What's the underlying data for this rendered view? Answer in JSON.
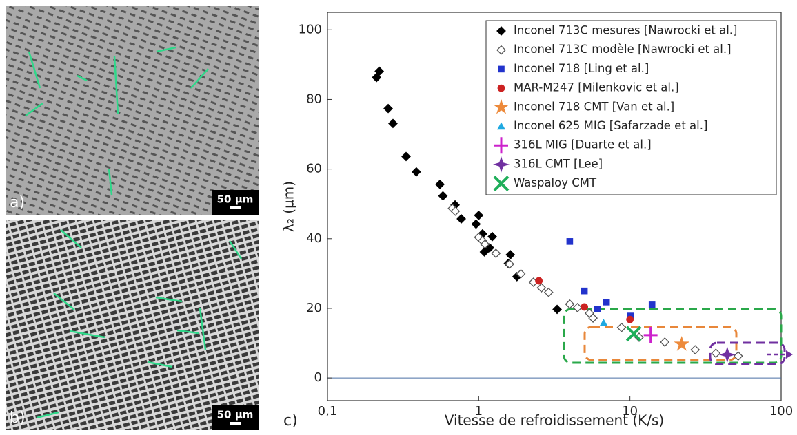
{
  "panels": [
    {
      "label": "a)",
      "scale": "50 µm"
    },
    {
      "label": "b)",
      "scale": "50 µm"
    }
  ],
  "chart_data": {
    "type": "scatter",
    "panel_label": "c)",
    "x_label": "Vitesse de refroidissement (K/s)",
    "y_label": "λ₂ (µm)",
    "x_log": true,
    "xlim": [
      0.1,
      100
    ],
    "xticks": [
      {
        "value": 0.1,
        "label": "0,1"
      },
      1,
      10,
      100
    ],
    "ylim": [
      -6.5,
      105
    ],
    "yticks": [
      0,
      20,
      40,
      60,
      80,
      100
    ],
    "series": [
      {
        "name": "Inconel 713C mesures [Nawrocki et al.]",
        "color": "#000000",
        "marker": "diamond",
        "filled": true,
        "x": [
          0.211,
          0.22,
          0.252,
          0.271,
          0.331,
          0.387,
          0.554,
          0.58,
          0.698,
          0.767,
          0.96,
          1.0,
          1.06,
          1.09,
          1.18,
          1.23,
          1.57,
          1.62,
          1.79,
          3.3
        ],
        "y": [
          86.3,
          88.1,
          77.4,
          73.1,
          63.6,
          59.2,
          55.6,
          52.3,
          49.7,
          45.7,
          44.2,
          46.7,
          41.4,
          36.2,
          37.4,
          40.6,
          32.9,
          35.4,
          29.1,
          19.7
        ]
      },
      {
        "name": "Inconel 713C modèle [Nawrocki et al.]",
        "color": "#555555",
        "marker": "diamond",
        "filled": false,
        "x": [
          0.67,
          0.7,
          1.0,
          1.06,
          1.1,
          1.3,
          1.6,
          1.9,
          2.3,
          2.6,
          2.9,
          4.0,
          4.5,
          5.4,
          5.7,
          8.8,
          11.5,
          17,
          27,
          37,
          52
        ],
        "y": [
          48.7,
          47.9,
          40.4,
          39.4,
          38.4,
          35.8,
          32.7,
          29.9,
          27.5,
          25.9,
          24.6,
          21.2,
          20.2,
          18.6,
          17.2,
          14.5,
          11.7,
          10.3,
          8.1,
          7.1,
          6.3
        ]
      },
      {
        "name": "Inconel 718 [Ling et al.]",
        "color": "#2233cc",
        "marker": "square",
        "filled": true,
        "x": [
          4.0,
          5.0,
          6.1,
          7.0,
          10.1,
          14
        ],
        "y": [
          39.2,
          25,
          19.8,
          21.8,
          17.8,
          21
        ]
      },
      {
        "name": "MAR-M247 [Milenkovic et al.]",
        "color": "#cc2222",
        "marker": "circle",
        "filled": true,
        "x": [
          2.5,
          5.0,
          10
        ],
        "y": [
          27.9,
          20.4,
          16.8
        ]
      },
      {
        "name": "Inconel 718 CMT [Van et al.]",
        "color": "#ed8a3b",
        "marker": "star",
        "filled": true,
        "x": [
          22
        ],
        "y": [
          9.7
        ]
      },
      {
        "name": "Inconel 625 MIG [Safarzade et al.]",
        "color": "#1fa9e1",
        "marker": "triangle",
        "filled": true,
        "x": [
          6.7
        ],
        "y": [
          15.8
        ]
      },
      {
        "name": "316L MIG [Duarte et al.]",
        "color": "#cc22cc",
        "marker": "plus",
        "filled": false,
        "x": [
          13.7
        ],
        "y": [
          12.3
        ]
      },
      {
        "name": "316L CMT [Lee]",
        "color": "#7030a0",
        "marker": "star4",
        "filled": true,
        "x": [
          44
        ],
        "y": [
          6.7
        ]
      },
      {
        "name": "Waspaloy CMT",
        "color": "#1fae5a",
        "marker": "cross",
        "filled": false,
        "x": [
          10.6
        ],
        "y": [
          12.7
        ]
      }
    ]
  }
}
